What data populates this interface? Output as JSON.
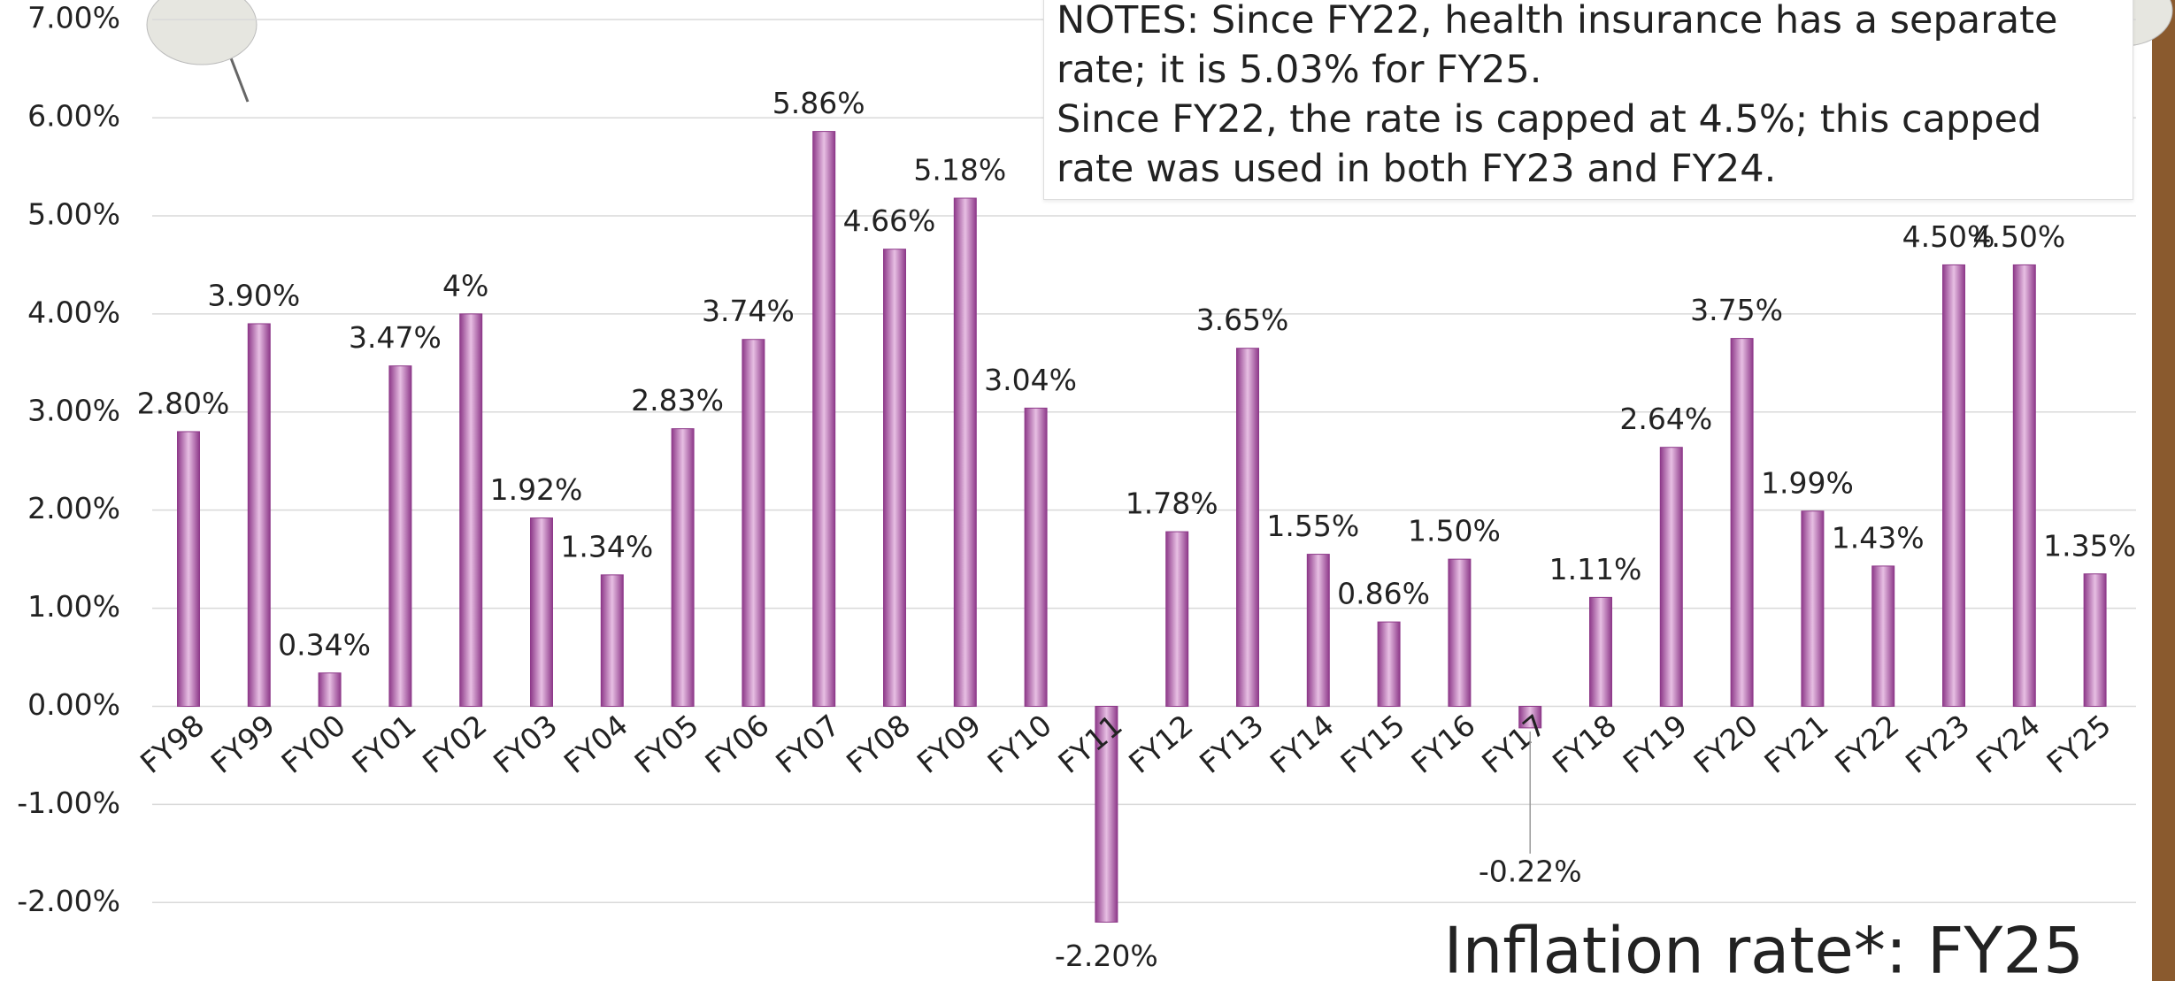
{
  "chart_data": {
    "type": "bar",
    "title": "Inflation rate*: FY25",
    "notes": [
      "NOTES: Since FY22, health insurance has a separate rate; it is 5.03% for FY25.",
      "Since FY22, the rate is capped at 4.5%; this capped rate was used in both FY23 and FY24."
    ],
    "categories": [
      "FY98",
      "FY99",
      "FY00",
      "FY01",
      "FY02",
      "FY03",
      "FY04",
      "FY05",
      "FY06",
      "FY07",
      "FY08",
      "FY09",
      "FY10",
      "FY11",
      "FY12",
      "FY13",
      "FY14",
      "FY15",
      "FY16",
      "FY17",
      "FY18",
      "FY19",
      "FY20",
      "FY21",
      "FY22",
      "FY23",
      "FY24",
      "FY25"
    ],
    "values": [
      2.8,
      3.9,
      0.34,
      3.47,
      4,
      1.92,
      1.34,
      2.83,
      3.74,
      5.86,
      4.66,
      5.18,
      3.04,
      -2.2,
      1.78,
      3.65,
      1.55,
      0.86,
      1.5,
      -0.22,
      1.11,
      2.64,
      3.75,
      1.99,
      1.43,
      4.5,
      4.5,
      1.35
    ],
    "value_labels": [
      "2.80%",
      "3.90%",
      "0.34%",
      "3.47%",
      "4%",
      "1.92%",
      "1.34%",
      "2.83%",
      "3.74%",
      "5.86%",
      "4.66%",
      "5.18%",
      "3.04%",
      "-2.20%",
      "1.78%",
      "3.65%",
      "1.55%",
      "0.86%",
      "1.50%",
      "-0.22%",
      "1.11%",
      "2.64%",
      "3.75%",
      "1.99%",
      "1.43%",
      "4.50%",
      "4.50%",
      "1.35%"
    ],
    "color": "#8e3a8a",
    "ylim": [
      -2.8,
      7.2
    ],
    "yticks": [
      {
        "value": -2,
        "label": "-2.00%"
      },
      {
        "value": -1,
        "label": "-1.00%"
      },
      {
        "value": 0,
        "label": "0.00%"
      },
      {
        "value": 1,
        "label": "1.00%"
      },
      {
        "value": 2,
        "label": "2.00%"
      },
      {
        "value": 3,
        "label": "3.00%"
      },
      {
        "value": 4,
        "label": "4.00%"
      },
      {
        "value": 5,
        "label": "5.00%"
      },
      {
        "value": 6,
        "label": "6.00%"
      },
      {
        "value": 7,
        "label": "7.00%"
      }
    ],
    "grid": true
  }
}
